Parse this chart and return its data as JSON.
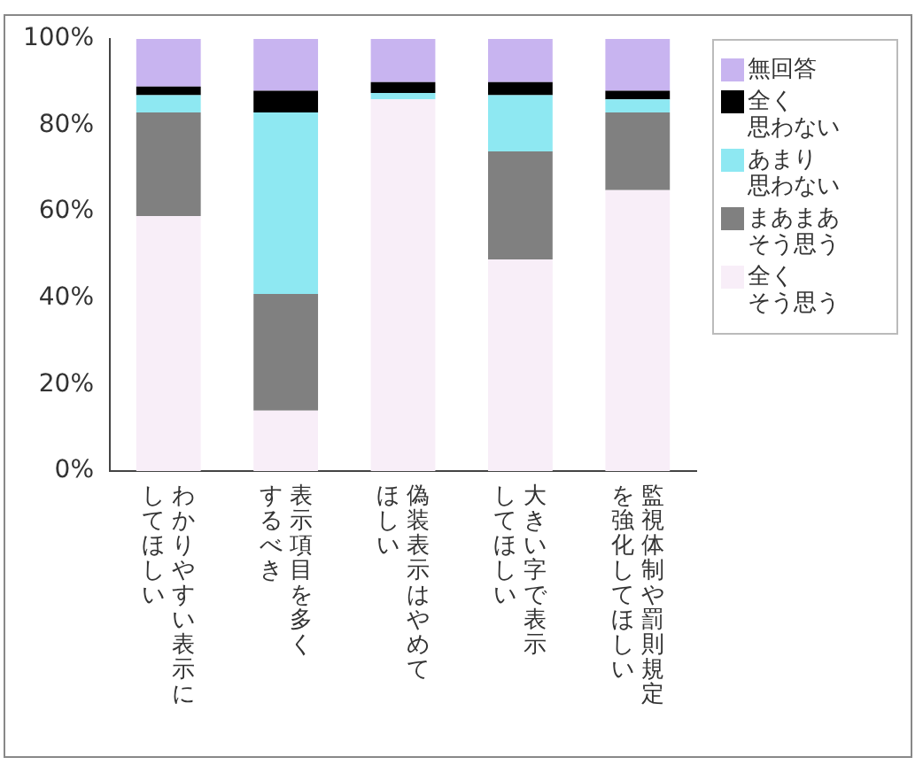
{
  "chart_data": {
    "type": "bar",
    "stacked": true,
    "categories": [
      "わかりやすい表示にしてほしい",
      "表示項目を多くするべき",
      "偽装表示はやめてほしい",
      "大きい字で表示してほしい",
      "監視体制や罰則規定を強化してほしい"
    ],
    "series": [
      {
        "name": "全くそう思う",
        "color": "#f8eef8",
        "values": [
          59,
          14,
          86,
          49,
          65
        ]
      },
      {
        "name": "まあまあそう思う",
        "color": "#808080",
        "values": [
          24,
          27,
          0,
          25,
          18
        ]
      },
      {
        "name": "あまり思わない",
        "color": "#8ee8f2",
        "values": [
          4,
          42,
          1.5,
          13,
          3
        ]
      },
      {
        "name": "全く思わない",
        "color": "#000000",
        "values": [
          2,
          5,
          2.5,
          3,
          2
        ]
      },
      {
        "name": "無回答",
        "color": "#c8b4f0",
        "values": [
          11,
          12,
          10,
          10,
          12
        ]
      }
    ],
    "ylim": [
      0,
      100
    ],
    "yticks": [
      {
        "value": 0,
        "label": "0%"
      },
      {
        "value": 20,
        "label": "20%"
      },
      {
        "value": 40,
        "label": "40%"
      },
      {
        "value": 60,
        "label": "60%"
      },
      {
        "value": 80,
        "label": "80%"
      },
      {
        "value": 100,
        "label": "100%"
      }
    ],
    "grid": false,
    "legend": "right"
  }
}
